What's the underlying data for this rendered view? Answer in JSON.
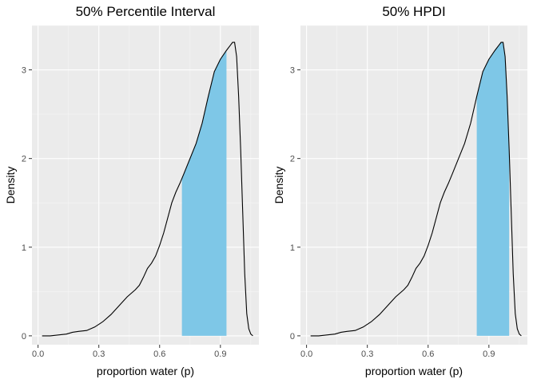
{
  "chart_data": [
    {
      "type": "area",
      "title": "50% Percentile Interval",
      "xlabel": "proportion water (p)",
      "ylabel": "Density",
      "x_ticks": [
        0.0,
        0.3,
        0.6,
        0.9
      ],
      "x_tick_labels": [
        "0.0",
        "0.3",
        "0.6",
        "0.9"
      ],
      "y_ticks": [
        0,
        1,
        2,
        3
      ],
      "y_tick_labels": [
        "0",
        "1",
        "2",
        "3"
      ],
      "xlim": [
        -0.03,
        1.09
      ],
      "ylim": [
        -0.1,
        3.5
      ],
      "grid": true,
      "density": {
        "x": [
          0.02,
          0.06,
          0.1,
          0.14,
          0.17,
          0.2,
          0.24,
          0.28,
          0.32,
          0.36,
          0.4,
          0.44,
          0.48,
          0.5,
          0.52,
          0.54,
          0.56,
          0.58,
          0.6,
          0.62,
          0.64,
          0.66,
          0.68,
          0.7,
          0.72,
          0.75,
          0.78,
          0.81,
          0.84,
          0.87,
          0.9,
          0.93,
          0.95,
          0.96,
          0.97,
          0.98,
          0.99,
          1.0,
          1.01,
          1.02,
          1.03,
          1.04,
          1.05,
          1.06
        ],
        "y": [
          0.0,
          0.0,
          0.01,
          0.02,
          0.04,
          0.05,
          0.06,
          0.1,
          0.16,
          0.24,
          0.34,
          0.44,
          0.52,
          0.57,
          0.66,
          0.76,
          0.82,
          0.9,
          1.02,
          1.16,
          1.33,
          1.5,
          1.62,
          1.72,
          1.83,
          2.0,
          2.17,
          2.4,
          2.7,
          2.98,
          3.12,
          3.22,
          3.28,
          3.31,
          3.31,
          3.15,
          2.7,
          2.1,
          1.4,
          0.7,
          0.25,
          0.08,
          0.02,
          0.0
        ]
      },
      "interval": [
        0.71,
        0.93
      ],
      "fill_color": "#7ec7e7"
    },
    {
      "type": "area",
      "title": "50% HPDI",
      "xlabel": "proportion water (p)",
      "ylabel": "Density",
      "x_ticks": [
        0.0,
        0.3,
        0.6,
        0.9
      ],
      "x_tick_labels": [
        "0.0",
        "0.3",
        "0.6",
        "0.9"
      ],
      "y_ticks": [
        0,
        1,
        2,
        3
      ],
      "y_tick_labels": [
        "0",
        "1",
        "2",
        "3"
      ],
      "xlim": [
        -0.03,
        1.09
      ],
      "ylim": [
        -0.1,
        3.5
      ],
      "grid": true,
      "density": {
        "x": [
          0.02,
          0.06,
          0.1,
          0.14,
          0.17,
          0.2,
          0.24,
          0.28,
          0.32,
          0.36,
          0.4,
          0.44,
          0.48,
          0.5,
          0.52,
          0.54,
          0.56,
          0.58,
          0.6,
          0.62,
          0.64,
          0.66,
          0.68,
          0.7,
          0.72,
          0.75,
          0.78,
          0.81,
          0.84,
          0.87,
          0.9,
          0.93,
          0.95,
          0.96,
          0.97,
          0.98,
          0.99,
          1.0,
          1.01,
          1.02,
          1.03,
          1.04,
          1.05,
          1.06
        ],
        "y": [
          0.0,
          0.0,
          0.01,
          0.02,
          0.04,
          0.05,
          0.06,
          0.1,
          0.16,
          0.24,
          0.34,
          0.44,
          0.52,
          0.57,
          0.66,
          0.76,
          0.82,
          0.9,
          1.02,
          1.16,
          1.33,
          1.5,
          1.62,
          1.72,
          1.83,
          2.0,
          2.17,
          2.4,
          2.7,
          2.98,
          3.12,
          3.22,
          3.28,
          3.31,
          3.31,
          3.15,
          2.7,
          2.1,
          1.4,
          0.7,
          0.25,
          0.08,
          0.02,
          0.0
        ]
      },
      "interval": [
        0.84,
        1.0
      ],
      "fill_color": "#7ec7e7"
    }
  ]
}
